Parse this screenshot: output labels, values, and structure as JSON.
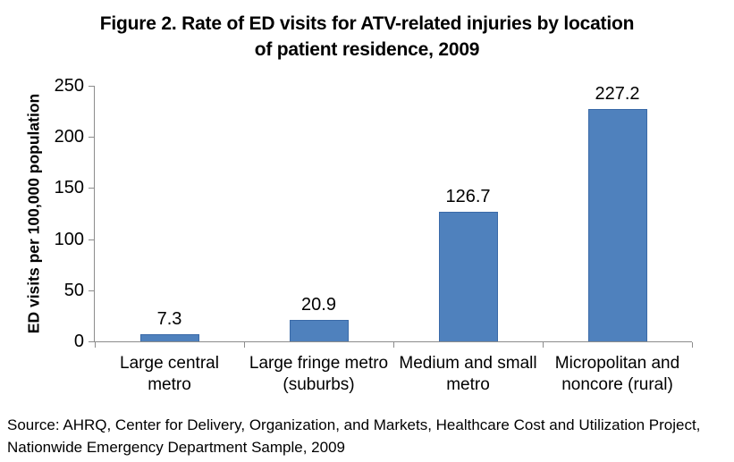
{
  "header": {
    "title": "Figure 2.  Rate of ED visits for ATV-related injuries by location of patient residence, 2009"
  },
  "chart_data": {
    "type": "bar",
    "title": "Figure 2. Rate of ED visits for ATV-related injuries by location of patient residence, 2009",
    "categories": [
      "Large central metro",
      "Large fringe metro (suburbs)",
      "Medium and small metro",
      "Micropolitan and noncore (rural)"
    ],
    "category_labels": [
      "Large central\nmetro",
      "Large fringe metro\n(suburbs)",
      "Medium and small\nmetro",
      "Micropolitan and\nnoncore (rural)"
    ],
    "values": [
      7.3,
      20.9,
      126.7,
      227.2
    ],
    "value_labels": [
      "7.3",
      "20.9",
      "126.7",
      "227.2"
    ],
    "xlabel": "",
    "ylabel": "ED visits per 100,000 population",
    "ylim": [
      0,
      250
    ],
    "yticks": [
      0,
      50,
      100,
      150,
      200,
      250
    ],
    "grid": false,
    "legend": false,
    "bar_color": "#4f81bd",
    "bar_border_color": "#3a6aa8",
    "axis_color": "#8c8c8c",
    "text_color": "#000000"
  },
  "source": {
    "text": "Source: AHRQ, Center for Delivery, Organization, and Markets, Healthcare Cost and Utilization Project, Nationwide Emergency Department Sample, 2009"
  }
}
